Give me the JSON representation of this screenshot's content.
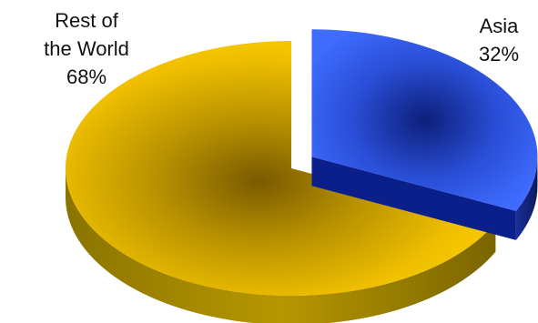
{
  "chart_data": {
    "type": "pie",
    "title": "",
    "slices": [
      {
        "label_lines": [
          "Asia"
        ],
        "pct_text": "32%",
        "value": 32,
        "color": "#3a64f0",
        "exploded": true
      },
      {
        "label_lines": [
          "Rest of",
          "the World"
        ],
        "pct_text": "68%",
        "value": 68,
        "color": "#f5c400",
        "exploded": false
      }
    ],
    "style": "3d-exploded"
  }
}
